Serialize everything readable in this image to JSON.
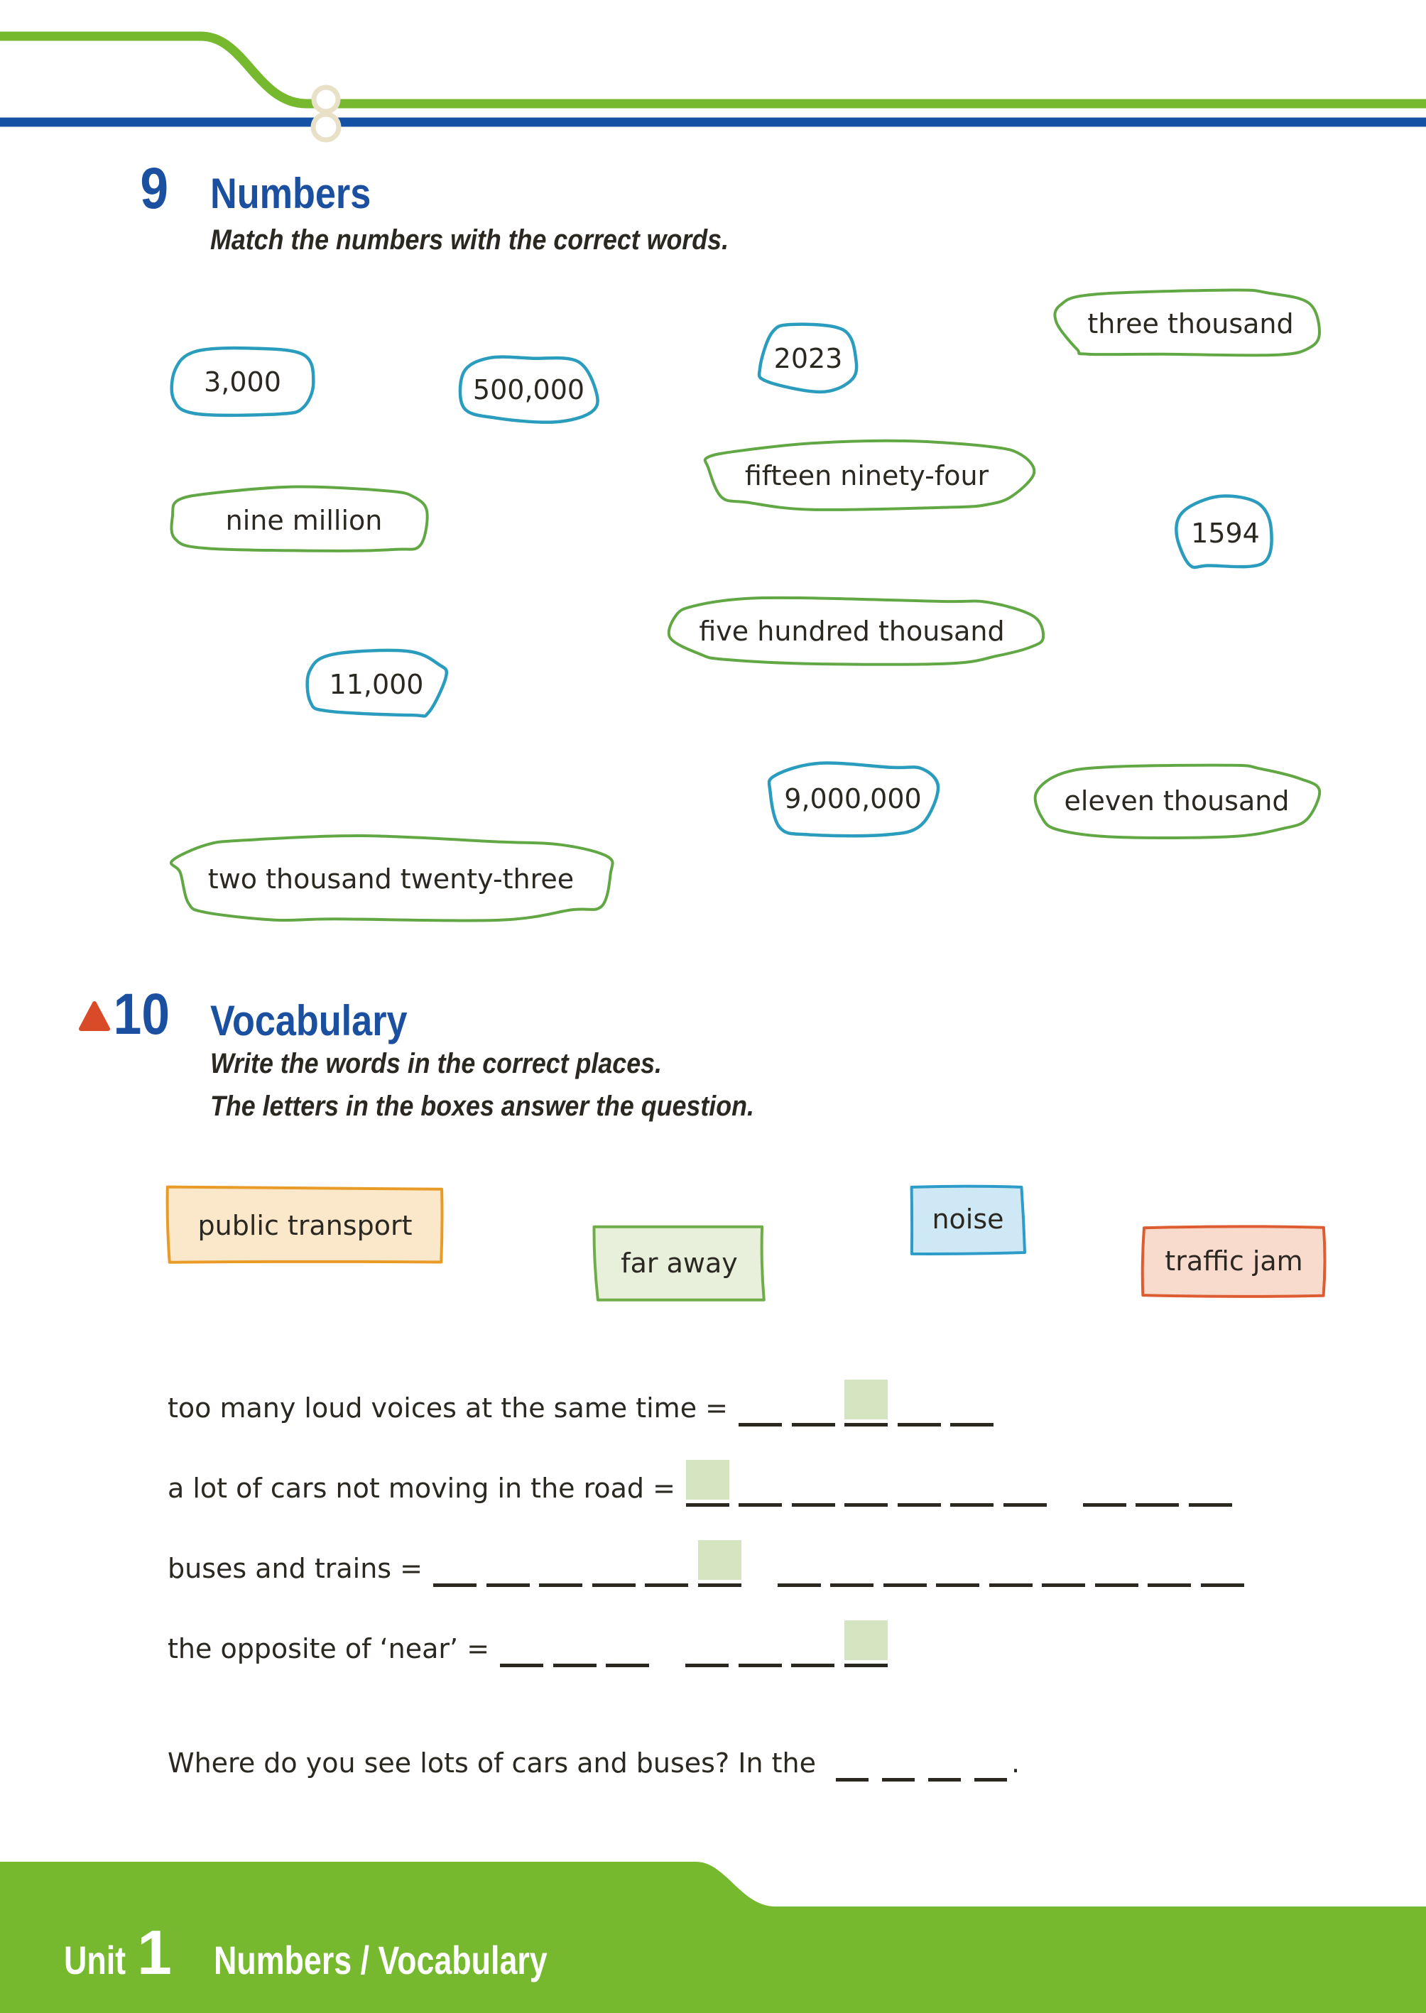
{
  "colors": {
    "paper": "#ffffff",
    "ink": "#2b2721",
    "band_green": "#76b82e",
    "rule_blue": "#1450a4",
    "heading_blue": "#1b4f9f",
    "chain_cream": "#e8e1c8",
    "triangle_red": "#d94a28",
    "blob_number_stroke": "#2a9cbd",
    "blob_word_stroke": "#61a845",
    "letterbox_green": "#d6e5c1",
    "wordbox_orange_border": "#e89b27",
    "wordbox_orange_fill": "#fbe7ca",
    "wordbox_green_border": "#6fad4a",
    "wordbox_green_fill": "#e8f0dc",
    "wordbox_blue_border": "#2d9cc9",
    "wordbox_blue_fill": "#cfe8f5",
    "wordbox_red_border": "#dd5c31",
    "wordbox_red_fill": "#f9dbce"
  },
  "exercise9": {
    "number": "9",
    "title": "Numbers",
    "instruction": "Match the numbers with the correct words."
  },
  "match_blobs": [
    {
      "label": "3,000",
      "kind": "number"
    },
    {
      "label": "500,000",
      "kind": "number"
    },
    {
      "label": "2023",
      "kind": "number"
    },
    {
      "label": "three thousand",
      "kind": "word"
    },
    {
      "label": "fifteen ninety-four",
      "kind": "word"
    },
    {
      "label": "nine million",
      "kind": "word"
    },
    {
      "label": "1594",
      "kind": "number"
    },
    {
      "label": "five hundred thousand",
      "kind": "word"
    },
    {
      "label": "11,000",
      "kind": "number"
    },
    {
      "label": "9,000,000",
      "kind": "number"
    },
    {
      "label": "eleven thousand",
      "kind": "word"
    },
    {
      "label": "two thousand twenty-three",
      "kind": "word"
    }
  ],
  "exercise10": {
    "number": "10",
    "title": "Vocabulary",
    "instruction_line1": "Write the words in the correct places.",
    "instruction_line2": "The letters in the boxes answer the question."
  },
  "word_bank": [
    {
      "label": "public transport",
      "color": "orange"
    },
    {
      "label": "far away",
      "color": "green"
    },
    {
      "label": "noise",
      "color": "blue"
    },
    {
      "label": "traffic jam",
      "color": "red"
    }
  ],
  "definitions": [
    {
      "text": "too many loud voices at the same time =",
      "groups": [
        {
          "blanks": 5,
          "box_at": 3
        }
      ]
    },
    {
      "text": "a lot of cars not moving in the road =",
      "groups": [
        {
          "blanks": 7,
          "box_at": 1
        },
        {
          "blanks": 3
        }
      ]
    },
    {
      "text": "buses and trains =",
      "groups": [
        {
          "blanks": 6,
          "box_at": 6
        },
        {
          "blanks": 9
        }
      ]
    },
    {
      "text": "the opposite of ‘near’ =",
      "groups": [
        {
          "blanks": 3
        },
        {
          "blanks": 4,
          "box_at": 4
        }
      ]
    }
  ],
  "question": {
    "text": "Where do you see lots of cars and buses? In the",
    "blanks": 4,
    "suffix": "."
  },
  "footer": {
    "unit_label": "Unit",
    "unit_number": "1",
    "section": "Numbers / Vocabulary"
  }
}
